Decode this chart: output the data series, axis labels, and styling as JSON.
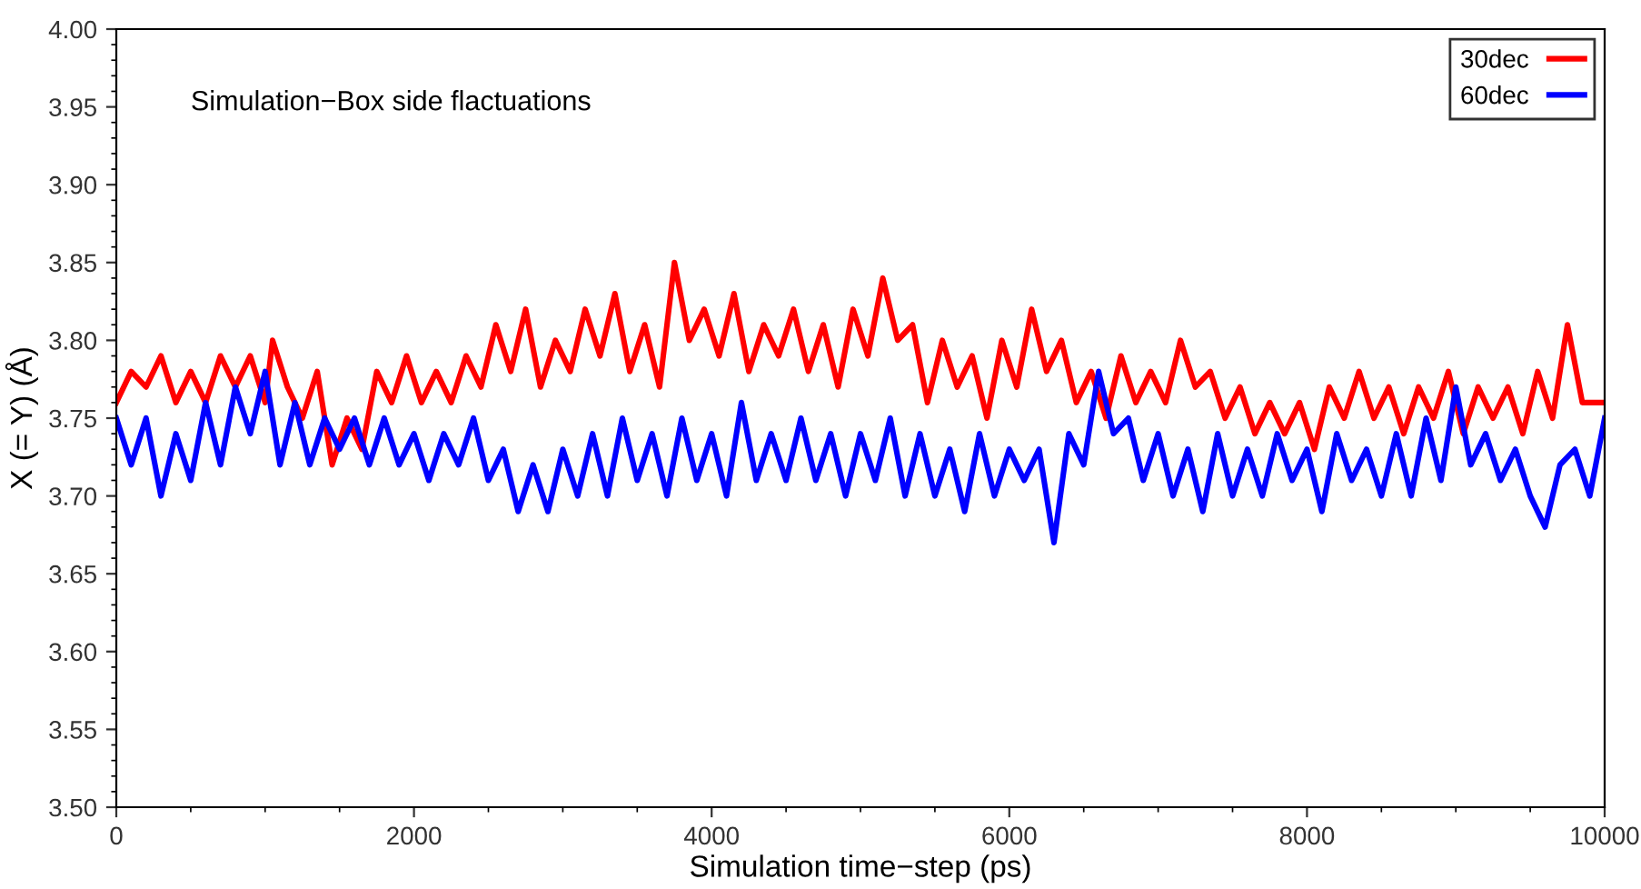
{
  "chart_data": {
    "type": "line",
    "xlabel": "Simulation time−step (ps)",
    "ylabel": "X (= Y) (Å)",
    "annotations": [
      "Simulation−Box side flactuations"
    ],
    "xlim": [
      0,
      10000
    ],
    "xticks": [
      0,
      2000,
      4000,
      6000,
      8000,
      10000
    ],
    "ylim": [
      3.5,
      4.0
    ],
    "yticks": [
      {
        "value": 3.5,
        "label": "3.50"
      },
      {
        "value": 3.55,
        "label": "3.55"
      },
      {
        "value": 3.6,
        "label": "3.60"
      },
      {
        "value": 3.65,
        "label": "3.65"
      },
      {
        "value": 3.7,
        "label": "3.70"
      },
      {
        "value": 3.75,
        "label": "3.75"
      },
      {
        "value": 3.8,
        "label": "3.80"
      },
      {
        "value": 3.85,
        "label": "3.85"
      },
      {
        "value": 3.9,
        "label": "3.90"
      },
      {
        "value": 3.95,
        "label": "3.95"
      },
      {
        "value": 4.0,
        "label": "4.00"
      }
    ],
    "grid": false,
    "legend": "top right",
    "line_style": "solid",
    "marker": "none",
    "series": [
      {
        "name": "30dec",
        "color": "#ff0000",
        "x": [
          0,
          100,
          200,
          300,
          400,
          500,
          600,
          700,
          800,
          900,
          1000,
          1050,
          1150,
          1250,
          1350,
          1450,
          1550,
          1650,
          1750,
          1850,
          1950,
          2050,
          2150,
          2250,
          2350,
          2450,
          2550,
          2650,
          2750,
          2850,
          2950,
          3050,
          3150,
          3250,
          3350,
          3450,
          3550,
          3650,
          3750,
          3850,
          3950,
          4050,
          4150,
          4250,
          4350,
          4450,
          4550,
          4650,
          4750,
          4850,
          4950,
          5050,
          5150,
          5250,
          5350,
          5450,
          5550,
          5650,
          5750,
          5850,
          5950,
          6050,
          6150,
          6250,
          6350,
          6450,
          6550,
          6650,
          6750,
          6850,
          6950,
          7050,
          7150,
          7250,
          7350,
          7450,
          7550,
          7650,
          7750,
          7850,
          7950,
          8050,
          8150,
          8250,
          8350,
          8450,
          8550,
          8650,
          8750,
          8850,
          8950,
          9050,
          9150,
          9250,
          9350,
          9450,
          9550,
          9650,
          9750,
          9850,
          10000
        ],
        "values": [
          3.76,
          3.78,
          3.77,
          3.79,
          3.76,
          3.78,
          3.76,
          3.79,
          3.77,
          3.79,
          3.76,
          3.8,
          3.77,
          3.75,
          3.78,
          3.72,
          3.75,
          3.73,
          3.78,
          3.76,
          3.79,
          3.76,
          3.78,
          3.76,
          3.79,
          3.77,
          3.81,
          3.78,
          3.82,
          3.77,
          3.8,
          3.78,
          3.82,
          3.79,
          3.83,
          3.78,
          3.81,
          3.77,
          3.85,
          3.8,
          3.82,
          3.79,
          3.83,
          3.78,
          3.81,
          3.79,
          3.82,
          3.78,
          3.81,
          3.77,
          3.82,
          3.79,
          3.84,
          3.8,
          3.81,
          3.76,
          3.8,
          3.77,
          3.79,
          3.75,
          3.8,
          3.77,
          3.82,
          3.78,
          3.8,
          3.76,
          3.78,
          3.75,
          3.79,
          3.76,
          3.78,
          3.76,
          3.8,
          3.77,
          3.78,
          3.75,
          3.77,
          3.74,
          3.76,
          3.74,
          3.76,
          3.73,
          3.77,
          3.75,
          3.78,
          3.75,
          3.77,
          3.74,
          3.77,
          3.75,
          3.78,
          3.74,
          3.77,
          3.75,
          3.77,
          3.74,
          3.78,
          3.75,
          3.81,
          3.76,
          3.76
        ]
      },
      {
        "name": "60dec",
        "color": "#0000ff",
        "x": [
          0,
          100,
          200,
          300,
          400,
          500,
          600,
          700,
          800,
          900,
          1000,
          1100,
          1200,
          1300,
          1400,
          1500,
          1600,
          1700,
          1800,
          1900,
          2000,
          2100,
          2200,
          2300,
          2400,
          2500,
          2600,
          2700,
          2800,
          2900,
          3000,
          3100,
          3200,
          3300,
          3400,
          3500,
          3600,
          3700,
          3800,
          3900,
          4000,
          4100,
          4200,
          4300,
          4400,
          4500,
          4600,
          4700,
          4800,
          4900,
          5000,
          5100,
          5200,
          5300,
          5400,
          5500,
          5600,
          5700,
          5800,
          5900,
          6000,
          6100,
          6200,
          6300,
          6400,
          6500,
          6600,
          6700,
          6800,
          6900,
          7000,
          7100,
          7200,
          7300,
          7400,
          7500,
          7600,
          7700,
          7800,
          7900,
          8000,
          8100,
          8200,
          8300,
          8400,
          8500,
          8600,
          8700,
          8800,
          8900,
          9000,
          9100,
          9200,
          9300,
          9400,
          9500,
          9600,
          9700,
          9800,
          9900,
          10000
        ],
        "values": [
          3.75,
          3.72,
          3.75,
          3.7,
          3.74,
          3.71,
          3.76,
          3.72,
          3.77,
          3.74,
          3.78,
          3.72,
          3.76,
          3.72,
          3.75,
          3.73,
          3.75,
          3.72,
          3.75,
          3.72,
          3.74,
          3.71,
          3.74,
          3.72,
          3.75,
          3.71,
          3.73,
          3.69,
          3.72,
          3.69,
          3.73,
          3.7,
          3.74,
          3.7,
          3.75,
          3.71,
          3.74,
          3.7,
          3.75,
          3.71,
          3.74,
          3.7,
          3.76,
          3.71,
          3.74,
          3.71,
          3.75,
          3.71,
          3.74,
          3.7,
          3.74,
          3.71,
          3.75,
          3.7,
          3.74,
          3.7,
          3.73,
          3.69,
          3.74,
          3.7,
          3.73,
          3.71,
          3.73,
          3.67,
          3.74,
          3.72,
          3.78,
          3.74,
          3.75,
          3.71,
          3.74,
          3.7,
          3.73,
          3.69,
          3.74,
          3.7,
          3.73,
          3.7,
          3.74,
          3.71,
          3.73,
          3.69,
          3.74,
          3.71,
          3.73,
          3.7,
          3.74,
          3.7,
          3.75,
          3.71,
          3.77,
          3.72,
          3.74,
          3.71,
          3.73,
          3.7,
          3.68,
          3.72,
          3.73,
          3.7,
          3.75
        ]
      }
    ]
  }
}
